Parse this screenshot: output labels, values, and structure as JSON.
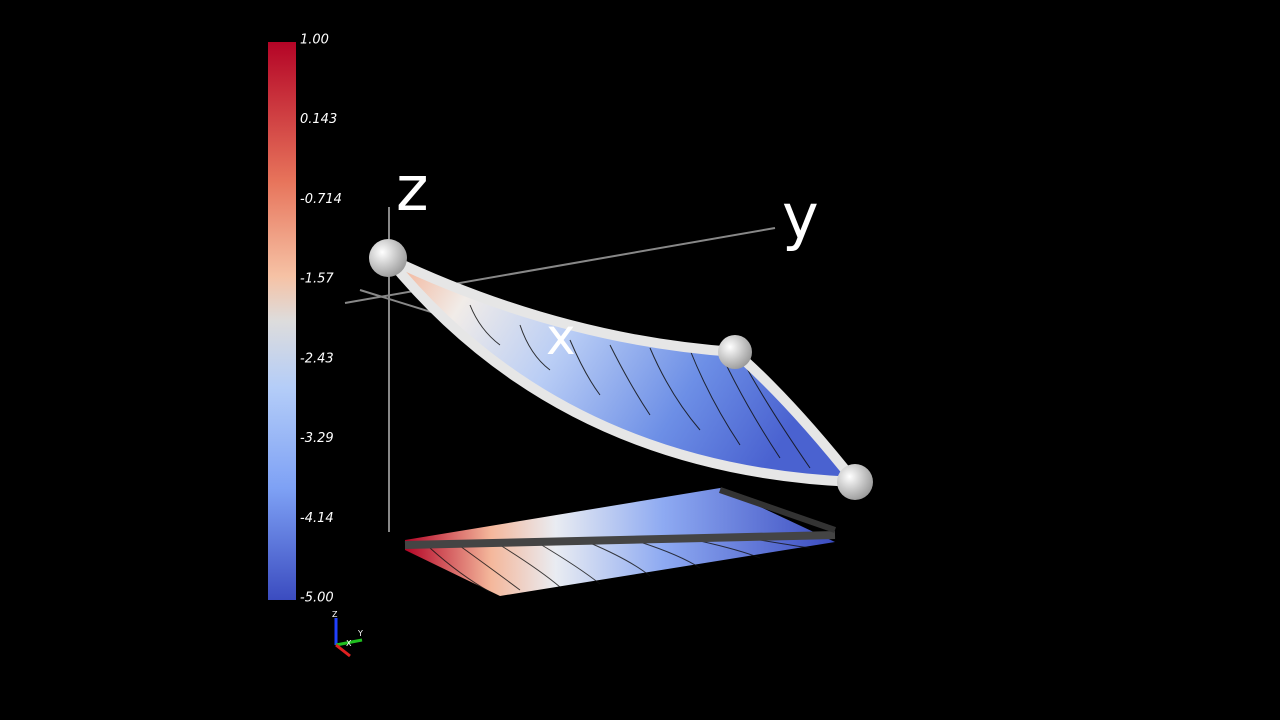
{
  "colorbar": {
    "labels": [
      "1.00",
      "0.143",
      "-0.714",
      "-1.57",
      "-2.43",
      "-3.29",
      "-4.14",
      "-5.00"
    ]
  },
  "axes": {
    "z": "z",
    "y": "y",
    "x": "x"
  },
  "orientation_axes": {
    "z": "Z",
    "y": "Y",
    "x": "X"
  }
}
